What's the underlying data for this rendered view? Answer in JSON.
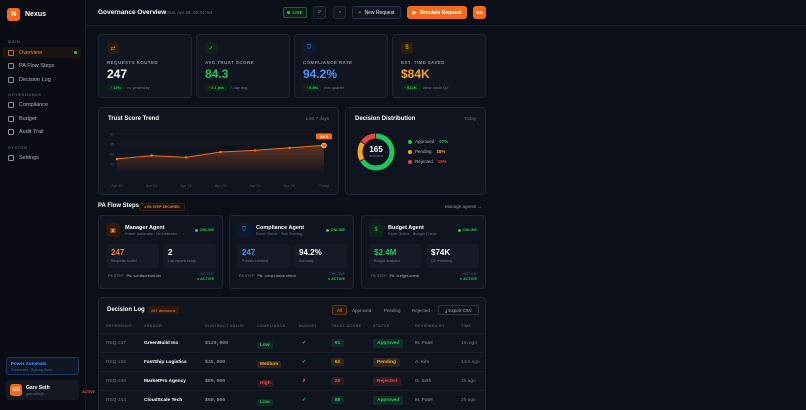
{
  "app": {
    "name": "Nexus",
    "logo_letter": "N"
  },
  "sidebar": {
    "sections": [
      {
        "label": "MAIN"
      },
      {
        "label": "GOVERNANCE"
      },
      {
        "label": "SYSTEM"
      }
    ],
    "items": [
      {
        "label": "Overview",
        "icon": "grid-icon",
        "active": true
      },
      {
        "label": "PA Flow Steps",
        "icon": "flow-icon"
      },
      {
        "label": "Decision Log",
        "icon": "log-icon"
      },
      {
        "label": "Compliance",
        "icon": "shield-icon"
      },
      {
        "label": "Budget",
        "icon": "dollar-icon"
      },
      {
        "label": "Audit Trail",
        "icon": "audit-icon"
      },
      {
        "label": "Settings",
        "icon": "gear-icon"
      }
    ],
    "pa_card": {
      "title": "Power Automate",
      "subtitle": "Connected · Syncing flows"
    },
    "user": {
      "initials": "GS",
      "name": "Garv Seth",
      "email": "garv.seth@...",
      "badge": "ACTIVE"
    }
  },
  "header": {
    "title": "Governance Overview",
    "date": "Sun, Apr 26, 05:34 AM",
    "live": "LIVE",
    "new_request": "New Request",
    "simulate_request": "Simulate Request",
    "avatar": "GS"
  },
  "kpis": [
    {
      "label": "REQUESTS ROUTED",
      "value": "247",
      "delta": "↑ 12%",
      "sub": "vs yesterday",
      "color": "#ffffff",
      "accent": "#f5823a",
      "icon": "route-icon"
    },
    {
      "label": "AVG TRUST SCORE",
      "value": "84.3",
      "delta": "↑ 2.1 pts",
      "sub": "7-day avg",
      "color": "#22c55e",
      "accent": "#22c55e",
      "icon": "check-icon"
    },
    {
      "label": "COMPLIANCE RATE",
      "value": "94.2%",
      "delta": "↑ 0.8%",
      "sub": "this quarter",
      "color": "#4a93ff",
      "accent": "#4a93ff",
      "icon": "shield-icon"
    },
    {
      "label": "EST. TIME SAVED",
      "value": "$84K",
      "delta": "↑ $12K",
      "sub": "labor costs Q2",
      "color": "#f5a524",
      "accent": "#f5a524",
      "icon": "dollar-icon"
    }
  ],
  "trend": {
    "title": "Trust Score Trend",
    "range": "Last 7 days",
    "badge": "84.3"
  },
  "chart_data": [
    {
      "type": "area",
      "title": "Trust Score Trend",
      "x": [
        "Apr 20",
        "Apr 21",
        "Apr 22",
        "Apr 23",
        "Apr 24",
        "Apr 25",
        "Today"
      ],
      "values": [
        77.5,
        79.2,
        78.3,
        81.0,
        81.8,
        83.1,
        84.3
      ],
      "ylim": [
        70,
        90
      ],
      "yticks": [
        "90",
        "85",
        "80",
        "75"
      ]
    },
    {
      "type": "pie",
      "title": "Decision Distribution",
      "center_value": "165",
      "center_label": "decisions",
      "slices": [
        {
          "label": "Approved",
          "pct": 67,
          "color": "#22c55e"
        },
        {
          "label": "Pending",
          "pct": 18,
          "color": "#f5a524"
        },
        {
          "label": "Rejected",
          "pct": 15,
          "color": "#ef4444"
        }
      ]
    }
  ],
  "distribution": {
    "title": "Decision Distribution",
    "range": "Today",
    "center": "165",
    "center_sub": "decisions",
    "legend": [
      {
        "label": "Approved",
        "value": "67%",
        "color": "#22c55e"
      },
      {
        "label": "Pending",
        "value": "18%",
        "color": "#f5a524"
      },
      {
        "label": "Rejected",
        "value": "15%",
        "color": "#ef4444"
      }
    ]
  },
  "flow": {
    "title": "PA Flow Steps",
    "badge": "● PA STEP SECURED",
    "manage": "Manage agents →",
    "agents": [
      {
        "name": "Manager Agent",
        "sub": "Power Automate · Orchestrator",
        "status": "ONLINE",
        "icon": "briefcase-icon",
        "color": "#f5823a",
        "m1": "247",
        "m1l": "Requests routed",
        "m1c": "#f5823a",
        "m2": "2",
        "m2l": "Low reports today",
        "m2c": "#ffffff",
        "step": "PA STEP",
        "stepv": "PA:  scrollsurtrust-ctx",
        "stat": "ONE-TIME",
        "statv": "● ACTIVE"
      },
      {
        "name": "Compliance Agent",
        "sub": "Excel Online · Risk Scoring",
        "status": "ONLINE",
        "icon": "shield-icon",
        "color": "#4a93ff",
        "m1": "247",
        "m1l": "Policies checked",
        "m1c": "#4a93ff",
        "m2": "94.2%",
        "m2l": "Accuracy",
        "m2c": "#ffffff",
        "step": "PA STEP",
        "stepv": "PA: compl-iance-check",
        "stat": "ONE-TIME",
        "statv": "● ACTIVE"
      },
      {
        "name": "Budget Agent",
        "sub": "Excel Online · Budget Check",
        "status": "ONLINE",
        "icon": "dollar-icon",
        "color": "#22c55e",
        "m1": "$2.4M",
        "m1l": "Budget analyzed",
        "m1c": "#22c55e",
        "m2": "$74K",
        "m2l": "Q2 remaining",
        "m2c": "#ffffff",
        "step": "PA STEP",
        "stepv": "PA: budget-check",
        "stat": "ONE-TIME",
        "statv": "● ACTIVE"
      }
    ]
  },
  "decision_log": {
    "title": "Decision Log",
    "count": "247 decisions",
    "filters": [
      "All",
      "Approved",
      "Pending",
      "Rejected"
    ],
    "export": "⤓ Export CSV",
    "columns": [
      "REFERENCE",
      "VENDOR",
      "CONTRACT VALUE",
      "COMPLIANCE",
      "BUDGET",
      "TRUST SCORE",
      "STATUS",
      "REVIEWED BY",
      "TIME"
    ],
    "rows": [
      {
        "ref": "REQ-247",
        "vendor": "GreenBuild Inc",
        "value": "$120,000",
        "comp": "Low",
        "compc": "#22c55e",
        "budget": "✓",
        "budgetc": "#22c55e",
        "score": "91",
        "scorec": "#22c55e",
        "status": "Approved",
        "statusc": "#22c55e",
        "by": "M. Patel",
        "time": "1m ago"
      },
      {
        "ref": "REQ-246",
        "vendor": "FastShip Logistics",
        "value": "$35,000",
        "comp": "Medium",
        "compc": "#f5a524",
        "budget": "✓",
        "budgetc": "#22c55e",
        "score": "62",
        "scorec": "#f5a524",
        "status": "Pending",
        "statusc": "#f5a524",
        "by": "A. Kim",
        "time": "14m ago"
      },
      {
        "ref": "REQ-245",
        "vendor": "MarketPro Agency",
        "value": "$80,000",
        "comp": "High",
        "compc": "#ef4444",
        "budget": "✗",
        "budgetc": "#ef4444",
        "score": "28",
        "scorec": "#ef4444",
        "status": "Rejected",
        "statusc": "#ef4444",
        "by": "G. Seth",
        "time": "1h ago"
      },
      {
        "ref": "REQ-244",
        "vendor": "CloudScale Tech",
        "value": "$60,000",
        "comp": "Low",
        "compc": "#22c55e",
        "budget": "✓",
        "budgetc": "#22c55e",
        "score": "88",
        "scorec": "#22c55e",
        "status": "Approved",
        "statusc": "#22c55e",
        "by": "M. Patel",
        "time": "2h ago"
      }
    ]
  }
}
